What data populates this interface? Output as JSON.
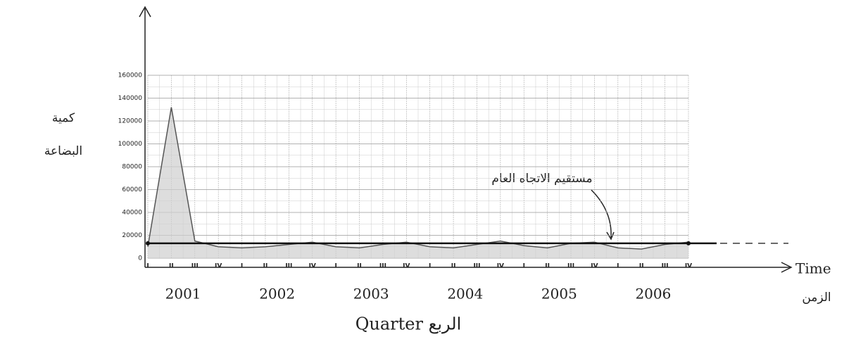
{
  "chart_data": {
    "type": "area",
    "y_label": [
      "كمية",
      "البضاعة"
    ],
    "annotation": "مستقيم الاتجاه العام",
    "x_label": "Time",
    "x_label_ar": "الزمن",
    "x_title": "Quarter الربع",
    "years": [
      "2001",
      "2002",
      "2003",
      "2004",
      "2005",
      "2006"
    ],
    "categories": [
      "I",
      "II",
      "III",
      "IV",
      "I",
      "II",
      "III",
      "IV",
      "I",
      "II",
      "III",
      "IV",
      "I",
      "II",
      "III",
      "IV",
      "I",
      "II",
      "III",
      "IV",
      "I",
      "II",
      "III",
      "IV"
    ],
    "values": [
      10000,
      132000,
      15000,
      10000,
      9000,
      10000,
      12000,
      14000,
      10000,
      9000,
      12000,
      14000,
      10000,
      9000,
      12000,
      15000,
      11000,
      9000,
      13000,
      14000,
      9000,
      8000,
      12000,
      14000
    ],
    "trend": 13000,
    "color": "#555",
    "fill": "#cfcfcf",
    "ylim": [
      0,
      160000
    ],
    "yticks": [
      0,
      20000,
      40000,
      60000,
      80000,
      100000,
      120000,
      140000,
      160000
    ],
    "grid": true
  }
}
